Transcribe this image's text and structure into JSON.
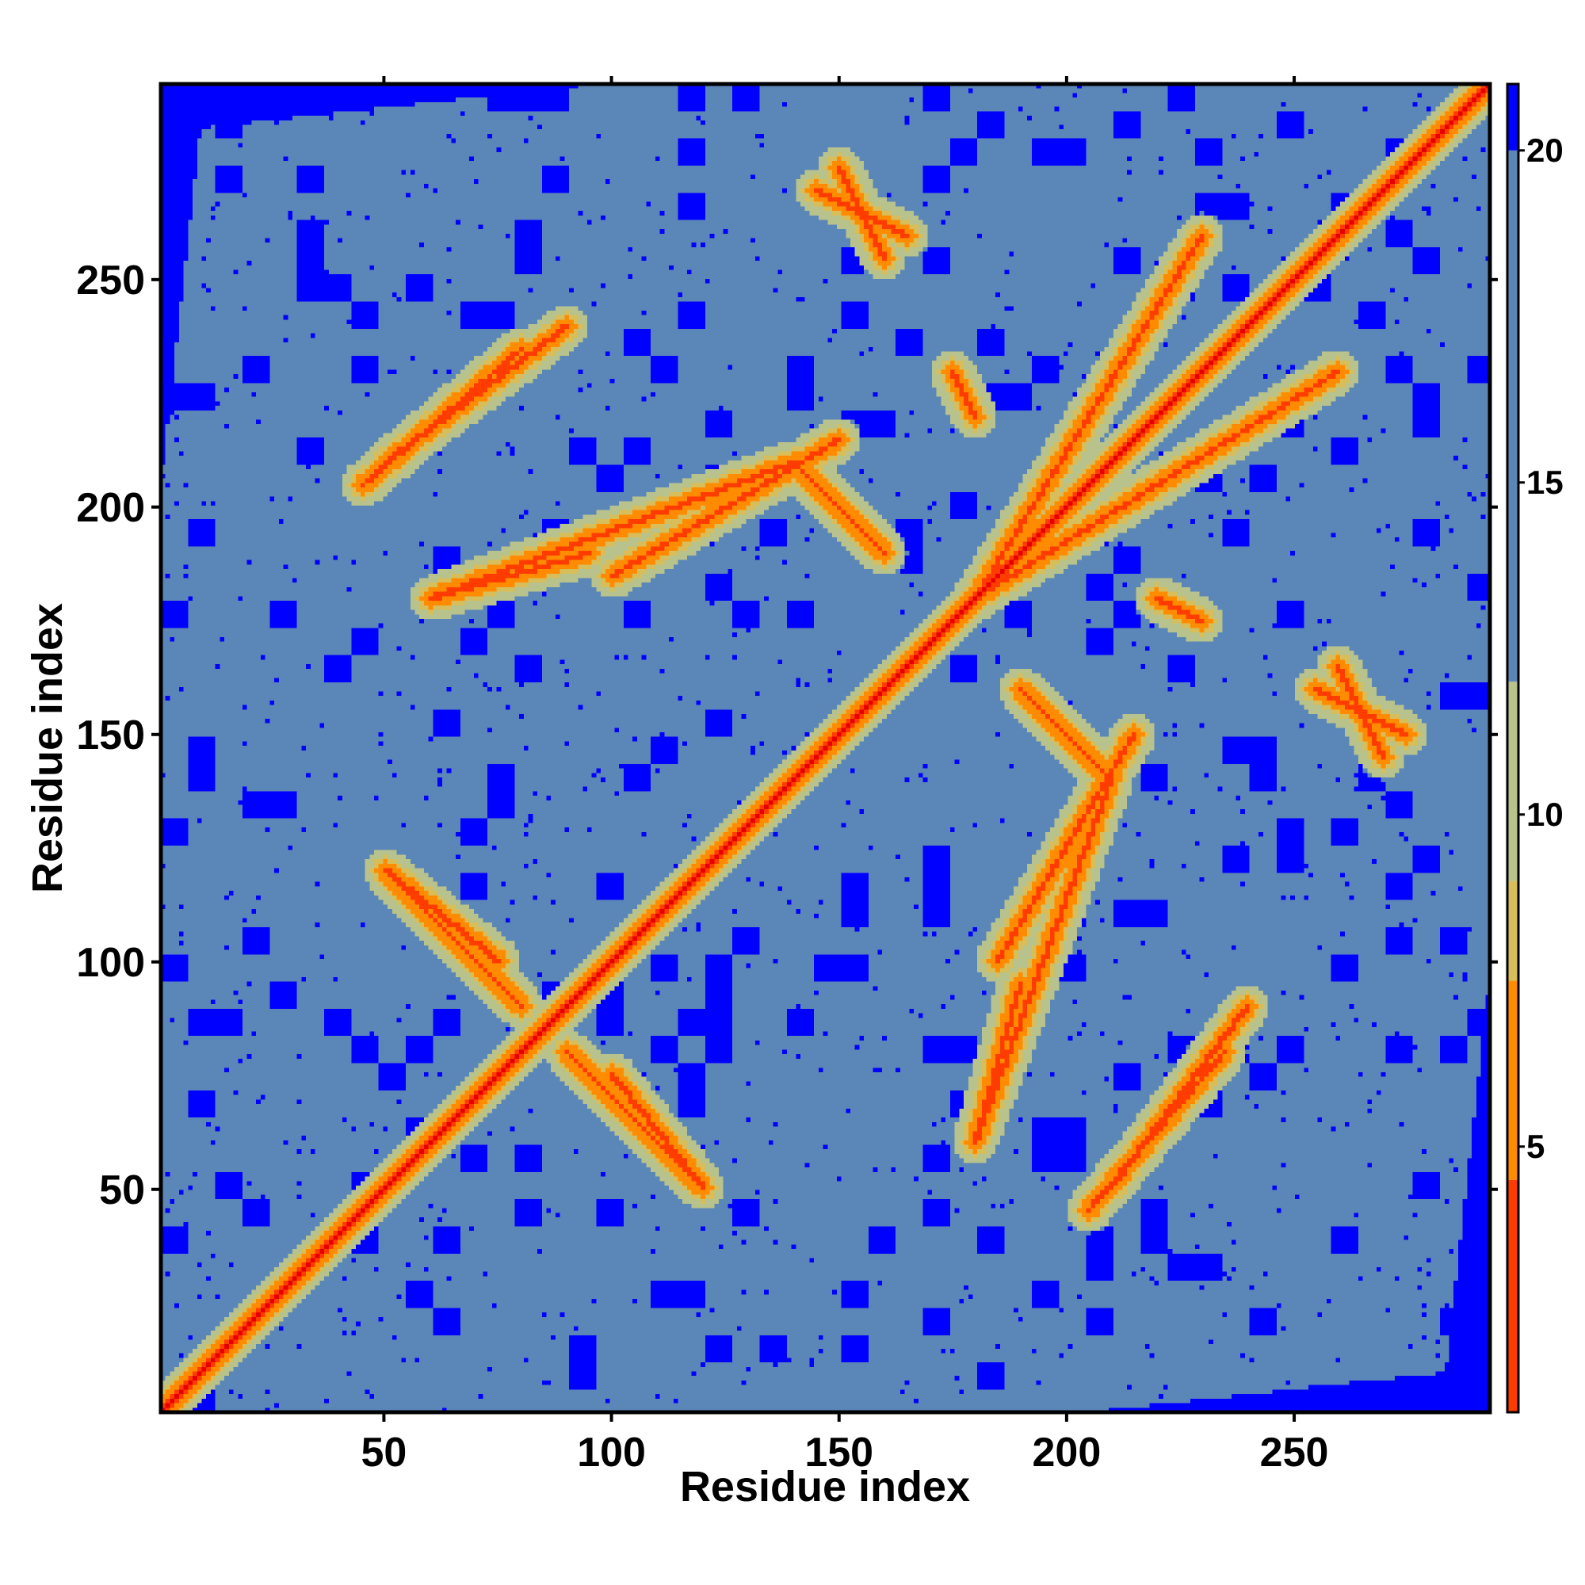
{
  "chart_data": {
    "type": "heatmap",
    "title": "",
    "xlabel": "Residue index",
    "ylabel": "Residue index",
    "n_residues": 293,
    "xlim": [
      1,
      293
    ],
    "ylim": [
      1,
      293
    ],
    "x_ticks": [
      50,
      100,
      150,
      200,
      250
    ],
    "y_ticks": [
      50,
      100,
      150,
      200,
      250
    ],
    "colorbar": {
      "range": [
        1,
        21
      ],
      "ticks": [
        5,
        10,
        15,
        20
      ],
      "colors": {
        "contact": "#ff0000",
        "close": "#ff8c00",
        "medium": "#b8c28c",
        "far": "#5b86b8",
        "background": "#0000ff"
      }
    },
    "features": {
      "diagonal_width": 4,
      "background_threshold": 20,
      "contact_bands": [
        {
          "from": [
            185,
            100
          ],
          "to": [
            215,
            150
          ],
          "width": 3
        },
        {
          "from": [
            180,
            180
          ],
          "to": [
            230,
            260
          ],
          "width": 3
        },
        {
          "from": [
            60,
            180
          ],
          "to": [
            140,
            210
          ],
          "width": 3
        },
        {
          "from": [
            45,
            205
          ],
          "to": [
            80,
            235
          ],
          "width": 3
        },
        {
          "from": [
            50,
            120
          ],
          "to": [
            80,
            90
          ],
          "width": 3
        },
        {
          "from": [
            100,
            75
          ],
          "to": [
            120,
            50
          ],
          "width": 3
        },
        {
          "from": [
            210,
            50
          ],
          "to": [
            240,
            90
          ],
          "width": 3
        },
        {
          "from": [
            180,
            60
          ],
          "to": [
            190,
            95
          ],
          "width": 3
        },
        {
          "from": [
            140,
            210
          ],
          "to": [
            160,
            190
          ],
          "width": 3
        },
        {
          "from": [
            145,
            270
          ],
          "to": [
            165,
            260
          ],
          "width": 3
        },
        {
          "from": [
            255,
            160
          ],
          "to": [
            275,
            150
          ],
          "width": 3
        },
        {
          "from": [
            220,
            180
          ],
          "to": [
            230,
            175
          ],
          "width": 3
        }
      ]
    }
  }
}
